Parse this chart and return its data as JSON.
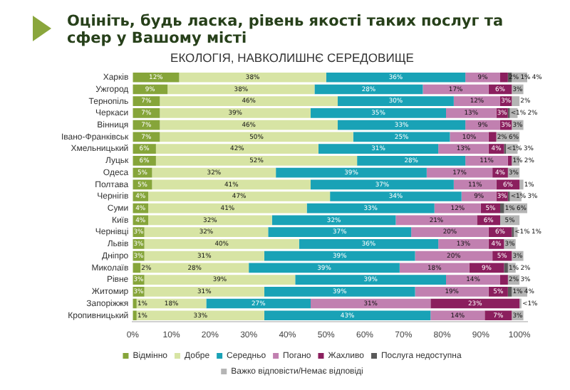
{
  "chart_data": {
    "type": "bar",
    "orientation": "horizontal",
    "stacked": true,
    "title": "Оцініть, будь ласка, рівень якості таких послуг та сфер у Вашому місті",
    "subtitle": "ЕКОЛОГІЯ, НАВКОЛИШНЄ СЕРЕДОВИЩЕ",
    "categories": [
      "Харків",
      "Ужгород",
      "Тернопіль",
      "Черкаси",
      "Вінниця",
      "Івано-Франківськ",
      "Хмельницький",
      "Луцьк",
      "Одеса",
      "Полтава",
      "Чернігів",
      "Суми",
      "Київ",
      "Чернівці",
      "Львів",
      "Дніпро",
      "Миколаїв",
      "Рівне",
      "Житомир",
      "Запоріжжя",
      "Кропивницький"
    ],
    "series": [
      {
        "name": "Відмінно",
        "color": "#86a53a",
        "values": [
          12,
          9,
          7,
          7,
          7,
          7,
          6,
          6,
          5,
          5,
          4,
          4,
          4,
          3,
          3,
          3,
          2,
          3,
          3,
          1,
          1
        ],
        "value_labels": [
          "12%",
          "9%",
          "7%",
          "7%",
          "7%",
          "7%",
          "6%",
          "6%",
          "5%",
          "5%",
          "4%",
          "4%",
          "4%",
          "3%",
          "3%",
          "3%",
          "2%",
          "3%",
          "3%",
          "1%",
          "1%"
        ]
      },
      {
        "name": "Добре",
        "color": "#d7e4a4",
        "values": [
          38,
          38,
          46,
          39,
          46,
          50,
          42,
          52,
          32,
          41,
          47,
          41,
          32,
          32,
          40,
          31,
          28,
          39,
          31,
          18,
          33
        ],
        "value_labels": [
          "38%",
          "38%",
          "46%",
          "39%",
          "46%",
          "50%",
          "42%",
          "52%",
          "32%",
          "41%",
          "47%",
          "41%",
          "32%",
          "32%",
          "40%",
          "31%",
          "28%",
          "39%",
          "31%",
          "18%",
          "33%"
        ]
      },
      {
        "name": "Середньо",
        "color": "#19a2b6",
        "values": [
          36,
          28,
          30,
          35,
          33,
          25,
          31,
          28,
          39,
          37,
          34,
          33,
          32,
          37,
          36,
          39,
          39,
          39,
          39,
          27,
          43
        ],
        "value_labels": [
          "36%",
          "28%",
          "30%",
          "35%",
          "33%",
          "25%",
          "31%",
          "28%",
          "39%",
          "37%",
          "34%",
          "33%",
          "32%",
          "37%",
          "36%",
          "39%",
          "39%",
          "39%",
          "39%",
          "27%",
          "43%"
        ]
      },
      {
        "name": "Погано",
        "color": "#c180b0",
        "values": [
          9,
          17,
          12,
          13,
          9,
          10,
          13,
          11,
          17,
          11,
          9,
          12,
          21,
          20,
          13,
          20,
          18,
          14,
          19,
          31,
          14
        ],
        "value_labels": [
          "9%",
          "17%",
          "12%",
          "13%",
          "9%",
          "10%",
          "13%",
          "11%",
          "17%",
          "11%",
          "9%",
          "12%",
          "21%",
          "20%",
          "13%",
          "20%",
          "18%",
          "14%",
          "19%",
          "31%",
          "14%"
        ]
      },
      {
        "name": "Жахливо",
        "color": "#8b1f5e",
        "values": [
          2,
          6,
          3,
          3,
          3,
          2,
          4,
          1,
          4,
          6,
          3,
          5,
          6,
          6,
          4,
          5,
          9,
          2,
          5,
          23,
          7
        ],
        "value_labels": [
          "2%",
          "6%",
          "3%",
          "3%",
          "3%",
          "2%",
          "4%",
          "1%",
          "4%",
          "6%",
          "3%",
          "5%",
          "6%",
          "6%",
          "4%",
          "5%",
          "9%",
          "2%",
          "5%",
          "23%",
          "7%"
        ]
      },
      {
        "name": "Послуга недоступна",
        "color": "#5a5a5a",
        "values": [
          1,
          0,
          0,
          0.5,
          0,
          0,
          0.5,
          0,
          0,
          0,
          0.5,
          1,
          0,
          0.5,
          0,
          0,
          1,
          0,
          1,
          0,
          0
        ],
        "value_labels": [
          "1%",
          null,
          null,
          "<1%",
          null,
          null,
          "<1%",
          null,
          null,
          null,
          "<1%",
          "1%",
          null,
          "<1%",
          null,
          null,
          "1%",
          null,
          "1%",
          null,
          null
        ]
      },
      {
        "name": "Важко відповісти/Немає відповіді",
        "color": "#b5b5b5",
        "values": [
          4,
          3,
          2,
          2,
          3,
          6,
          3,
          2,
          3,
          1,
          3,
          6,
          5,
          1,
          3,
          3,
          2,
          3,
          4,
          0.5,
          3
        ],
        "value_labels": [
          "4%",
          "3%",
          "2%",
          "2%",
          "3%",
          "6%",
          "3%",
          "2%",
          "3%",
          "1%",
          "3%",
          "6%",
          "5%",
          "1%",
          "3%",
          "3%",
          "2%",
          "3%",
          "4%",
          "<1%",
          "3%"
        ]
      }
    ],
    "xlim": [
      0,
      102
    ],
    "xticks": [
      {
        "value": 0,
        "label": "0%"
      },
      {
        "value": 10,
        "label": "10%"
      },
      {
        "value": 20,
        "label": "20%"
      },
      {
        "value": 30,
        "label": "30%"
      },
      {
        "value": 40,
        "label": "40%"
      },
      {
        "value": 50,
        "label": "50%"
      },
      {
        "value": 60,
        "label": "60%"
      },
      {
        "value": 70,
        "label": "70%"
      },
      {
        "value": 80,
        "label": "80%"
      },
      {
        "value": 90,
        "label": "90%"
      },
      {
        "value": 100,
        "label": "100%"
      }
    ],
    "grid": false,
    "legend": "bottom"
  }
}
